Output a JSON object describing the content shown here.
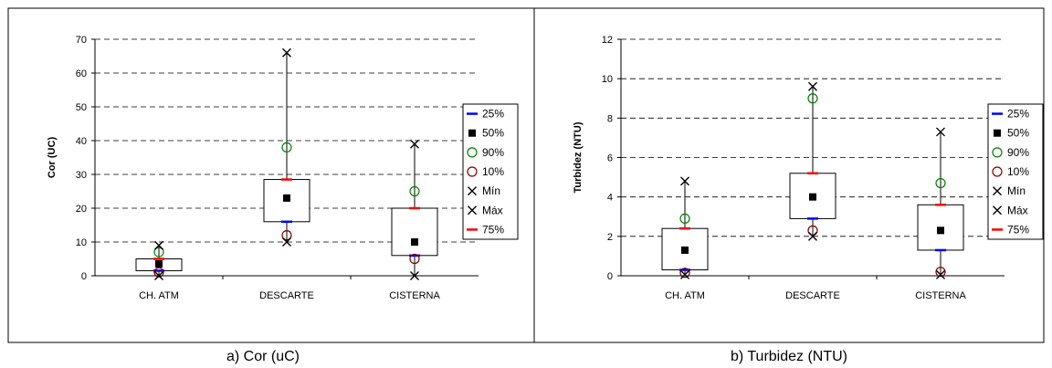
{
  "legend_items": [
    {
      "label": "25%",
      "marker": "dash",
      "color": "#0000ff"
    },
    {
      "label": "50%",
      "marker": "square",
      "color": "#000000"
    },
    {
      "label": "90%",
      "marker": "circle",
      "color": "#008000"
    },
    {
      "label": "10%",
      "marker": "circle",
      "color": "#800000"
    },
    {
      "label": "Mín",
      "marker": "x",
      "color": "#000000"
    },
    {
      "label": "Máx",
      "marker": "x",
      "color": "#000000"
    },
    {
      "label": "75%",
      "marker": "dash",
      "color": "#ff0000"
    }
  ],
  "chart_data": [
    {
      "type": "box",
      "title": "",
      "xlabel": "",
      "ylabel": "Cor (UC)",
      "caption": "a) Cor (uC)",
      "ylim": [
        0,
        70
      ],
      "yticks": [
        0,
        10,
        20,
        30,
        40,
        50,
        60,
        70
      ],
      "grid": true,
      "legend": "right",
      "categories": [
        "CH. ATM",
        "DESCARTE",
        "CISTERNA"
      ],
      "stats": [
        {
          "p25": 1.5,
          "p50": 3.5,
          "p90": 7,
          "p10": 1,
          "min": 0,
          "max": 9,
          "p75": 5
        },
        {
          "p25": 16,
          "p50": 23,
          "p90": 38,
          "p10": 12,
          "min": 10,
          "max": 66,
          "p75": 28.5
        },
        {
          "p25": 6,
          "p50": 10,
          "p90": 25,
          "p10": 5,
          "min": 0,
          "max": 39,
          "p75": 20
        }
      ]
    },
    {
      "type": "box",
      "title": "",
      "xlabel": "",
      "ylabel": "Turbidez (NTU)",
      "caption": "b) Turbidez (NTU)",
      "ylim": [
        0,
        12
      ],
      "yticks": [
        0,
        2,
        4,
        6,
        8,
        10,
        12
      ],
      "grid": true,
      "legend": "right",
      "categories": [
        "CH. ATM",
        "DESCARTE",
        "CISTERNA"
      ],
      "stats": [
        {
          "p25": 0.3,
          "p50": 1.3,
          "p90": 2.9,
          "p10": 0.15,
          "min": 0.05,
          "max": 4.8,
          "p75": 2.4
        },
        {
          "p25": 2.9,
          "p50": 4,
          "p90": 9,
          "p10": 2.3,
          "min": 2,
          "max": 9.6,
          "p75": 5.2
        },
        {
          "p25": 1.3,
          "p50": 2.3,
          "p90": 4.7,
          "p10": 0.2,
          "min": 0.05,
          "max": 7.3,
          "p75": 3.6
        }
      ]
    }
  ]
}
